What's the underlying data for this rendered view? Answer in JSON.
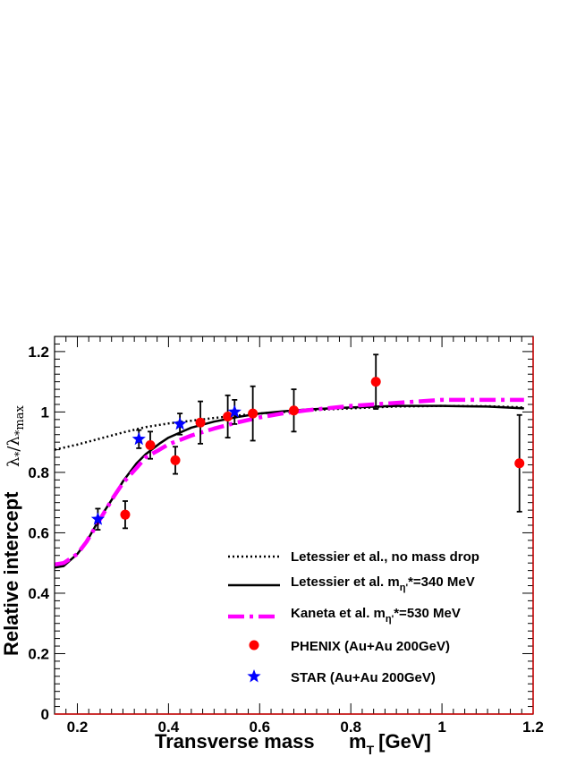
{
  "chart_data": {
    "type": "scatter",
    "xlabel": "Transverse mass",
    "xlabel_var": "m",
    "xlabel_sub": "T",
    "xlabel_unit": "[GeV]",
    "ylabel": "Relative intercept",
    "ylabel_ratio": {
      "num_lambda": "λ",
      "num_sub": "*",
      "slash": "/",
      "den_lambda": "λ",
      "den_sub": "*max"
    },
    "xlim": [
      0.15,
      1.2
    ],
    "ylim": [
      0,
      1.25
    ],
    "xticks": [
      "0.2",
      "0.4",
      "0.6",
      "0.8",
      "1",
      "1.2"
    ],
    "xtick_values": [
      0.2,
      0.4,
      0.6,
      0.8,
      1.0,
      1.2
    ],
    "yticks": [
      "0",
      "0.2",
      "0.4",
      "0.6",
      "0.8",
      "1",
      "1.2"
    ],
    "ytick_values": [
      0,
      0.2,
      0.4,
      0.6,
      0.8,
      1.0,
      1.2
    ],
    "legend_position": "bottom-right",
    "series": [
      {
        "kind": "line",
        "style": "dotted",
        "color": "#000000",
        "label": "Letessier et al., no mass drop",
        "x": [
          0.15,
          0.2,
          0.25,
          0.3,
          0.35,
          0.4,
          0.45,
          0.5,
          0.55,
          0.6,
          0.7,
          0.8,
          0.9,
          1.0,
          1.1,
          1.18
        ],
        "y": [
          0.875,
          0.892,
          0.912,
          0.932,
          0.95,
          0.962,
          0.971,
          0.98,
          0.988,
          0.995,
          1.005,
          1.012,
          1.018,
          1.02,
          1.019,
          1.015
        ]
      },
      {
        "kind": "line",
        "style": "solid",
        "color": "#000000",
        "label": "Letessier et al. m",
        "label_sub": "η'",
        "label_rest": "*=340 MeV",
        "x": [
          0.15,
          0.17,
          0.2,
          0.22,
          0.25,
          0.28,
          0.3,
          0.33,
          0.35,
          0.38,
          0.4,
          0.43,
          0.45,
          0.5,
          0.55,
          0.6,
          0.65,
          0.7,
          0.8,
          0.9,
          1.0,
          1.1,
          1.18
        ],
        "y": [
          0.485,
          0.49,
          0.53,
          0.57,
          0.65,
          0.72,
          0.77,
          0.83,
          0.86,
          0.895,
          0.915,
          0.935,
          0.948,
          0.968,
          0.983,
          0.995,
          1.002,
          1.008,
          1.015,
          1.02,
          1.02,
          1.018,
          1.012
        ]
      },
      {
        "kind": "line",
        "style": "dashdot",
        "color": "#ff00ff",
        "label": "Kaneta et al. m",
        "label_sub": "η'",
        "label_rest": "*=530 MeV",
        "x": [
          0.15,
          0.17,
          0.2,
          0.22,
          0.25,
          0.28,
          0.3,
          0.33,
          0.35,
          0.38,
          0.4,
          0.43,
          0.45,
          0.5,
          0.55,
          0.6,
          0.65,
          0.7,
          0.8,
          0.9,
          1.0,
          1.1,
          1.18
        ],
        "y": [
          0.495,
          0.5,
          0.53,
          0.57,
          0.645,
          0.72,
          0.765,
          0.815,
          0.85,
          0.875,
          0.893,
          0.91,
          0.922,
          0.945,
          0.965,
          0.982,
          0.995,
          1.005,
          1.02,
          1.03,
          1.04,
          1.04,
          1.04
        ]
      },
      {
        "kind": "points",
        "marker": "circle",
        "color": "#ff0000",
        "label": "PHENIX (Au+Au 200GeV)",
        "x": [
          0.305,
          0.36,
          0.415,
          0.47,
          0.53,
          0.585,
          0.675,
          0.855,
          1.17
        ],
        "y": [
          0.66,
          0.89,
          0.84,
          0.965,
          0.985,
          0.995,
          1.005,
          1.1,
          0.83
        ],
        "err": [
          0.045,
          0.045,
          0.045,
          0.07,
          0.07,
          0.09,
          0.07,
          0.09,
          0.16
        ]
      },
      {
        "kind": "points",
        "marker": "star",
        "color": "#0000ff",
        "label": "STAR (Au+Au 200GeV)",
        "x": [
          0.245,
          0.335,
          0.425,
          0.545
        ],
        "y": [
          0.645,
          0.91,
          0.96,
          1.0
        ],
        "err": [
          0.035,
          0.03,
          0.035,
          0.04
        ]
      }
    ]
  }
}
